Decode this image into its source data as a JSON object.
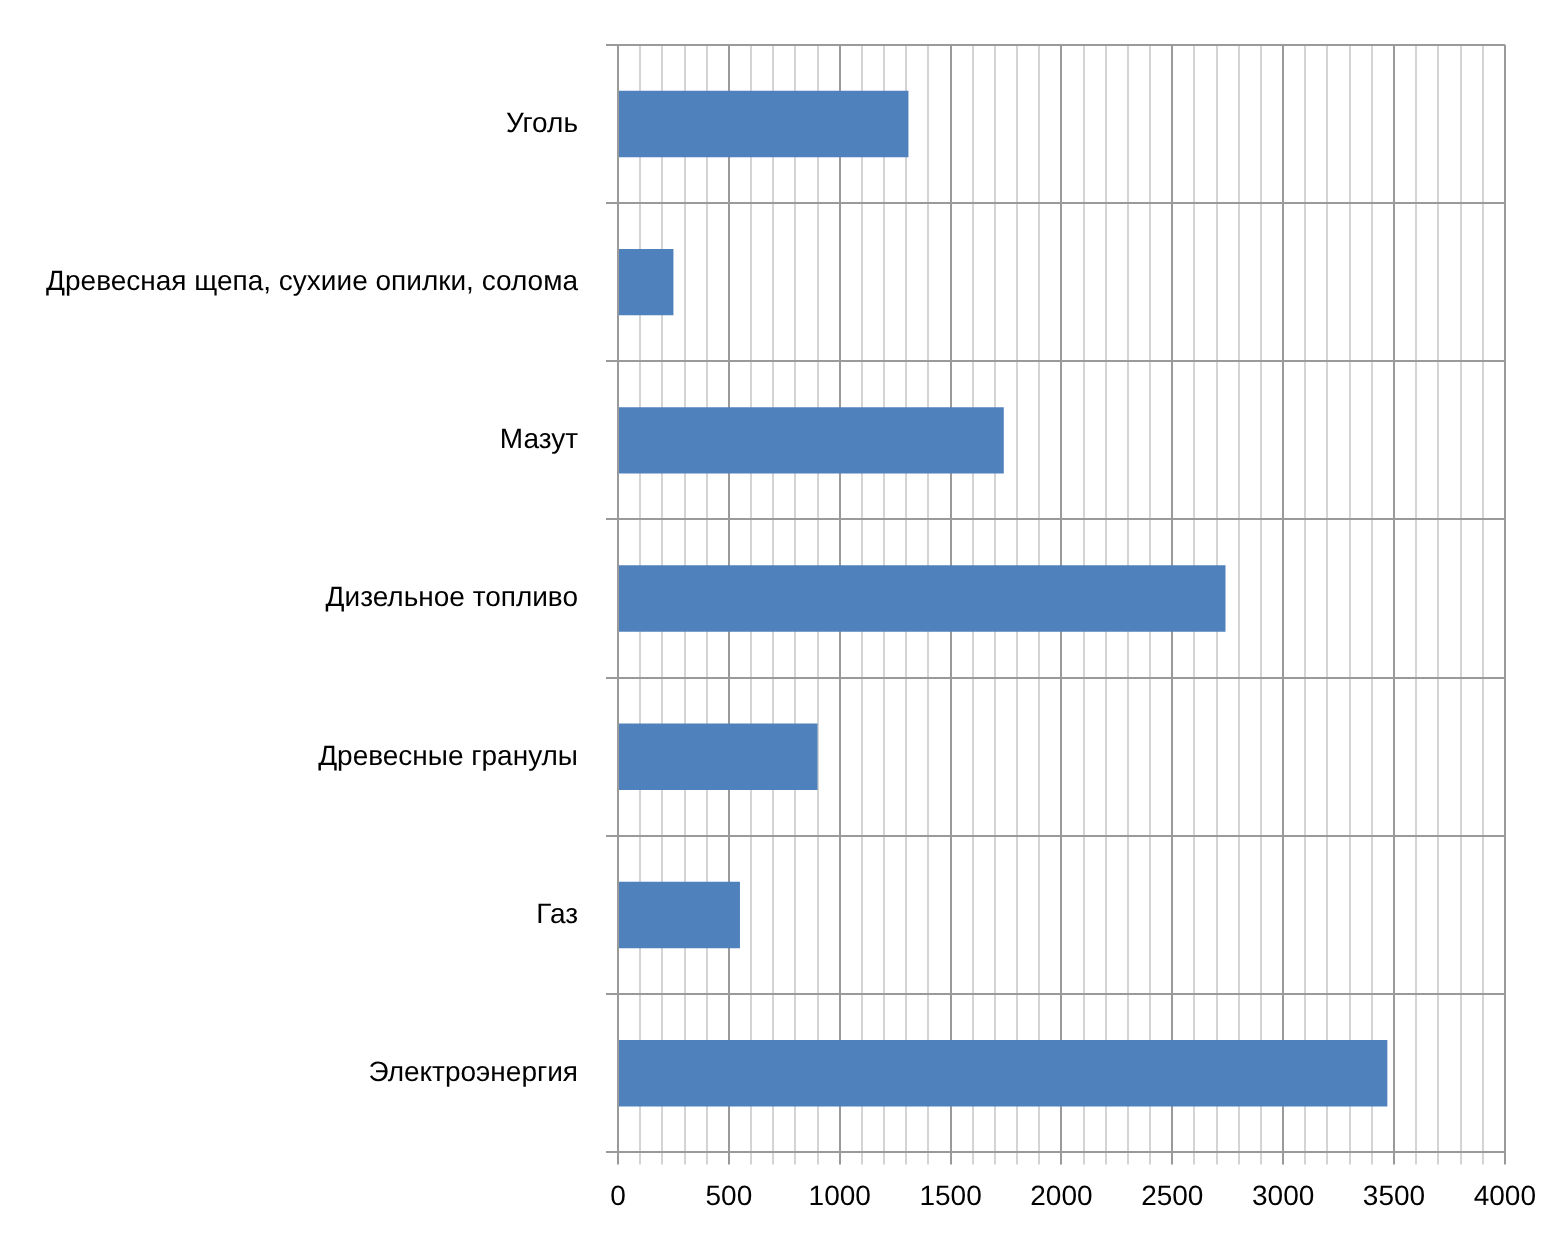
{
  "chart_data": {
    "type": "bar",
    "orientation": "horizontal",
    "categories": [
      "Уголь",
      "Древесная щепа, сухиие опилки, солома",
      "Мазут",
      "Дизельное топливо",
      "Древесные гранулы",
      "Газ",
      "Электроэнергия"
    ],
    "values": [
      1310,
      250,
      1740,
      2740,
      900,
      550,
      3470
    ],
    "color": "#4f81bd",
    "xlim": [
      0,
      4000
    ],
    "xticks": [
      0,
      {
        "value": 100,
        "label": null
      },
      {
        "value": 200,
        "label": null
      },
      {
        "value": 300,
        "label": null
      },
      {
        "value": 400,
        "label": null
      },
      500,
      {
        "value": 600,
        "label": null
      },
      {
        "value": 700,
        "label": null
      },
      {
        "value": 800,
        "label": null
      },
      {
        "value": 900,
        "label": null
      },
      1000,
      {
        "value": 1100,
        "label": null
      },
      {
        "value": 1200,
        "label": null
      },
      {
        "value": 1300,
        "label": null
      },
      {
        "value": 1400,
        "label": null
      },
      1500,
      {
        "value": 1600,
        "label": null
      },
      {
        "value": 1700,
        "label": null
      },
      {
        "value": 1800,
        "label": null
      },
      {
        "value": 1900,
        "label": null
      },
      2000,
      {
        "value": 2100,
        "label": null
      },
      {
        "value": 2200,
        "label": null
      },
      {
        "value": 2300,
        "label": null
      },
      {
        "value": 2400,
        "label": null
      },
      2500,
      {
        "value": 2600,
        "label": null
      },
      {
        "value": 2700,
        "label": null
      },
      {
        "value": 2800,
        "label": null
      },
      {
        "value": 2900,
        "label": null
      },
      3000,
      {
        "value": 3100,
        "label": null
      },
      {
        "value": 3200,
        "label": null
      },
      {
        "value": 3300,
        "label": null
      },
      {
        "value": 3400,
        "label": null
      },
      3500,
      {
        "value": 3600,
        "label": null
      },
      {
        "value": 3700,
        "label": null
      },
      {
        "value": 3800,
        "label": null
      },
      {
        "value": 3900,
        "label": null
      },
      4000
    ],
    "grid": true,
    "legend": false
  }
}
